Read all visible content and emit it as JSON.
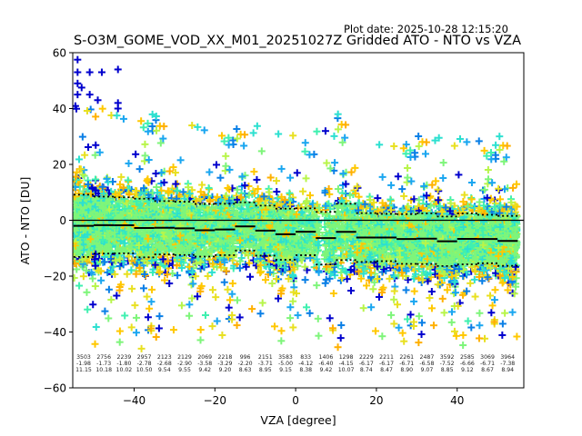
{
  "chart_data": {
    "type": "scatter",
    "title": "S-O3M_GOME_VOD_XX_M01_20251027Z Gridded ATO - NTO vs VZA",
    "plot_date": "Plot date: 2025-10-28 12:15:20",
    "xlabel": "VZA [degree]",
    "ylabel": "ATO - NTO [DU]",
    "xlim": [
      -55.2,
      56.5
    ],
    "ylim": [
      -60,
      60
    ],
    "xticks": [
      -40,
      -20,
      0,
      20,
      40
    ],
    "xtick_labels": [
      "−40",
      "−20",
      "0",
      "20",
      "40"
    ],
    "yticks": [
      -60,
      -40,
      -20,
      0,
      20,
      40,
      60
    ],
    "ytick_labels": [
      "−60",
      "−40",
      "−20",
      "0",
      "20",
      "40",
      "60"
    ],
    "marker": "plus",
    "colormap": [
      "#0000cd",
      "#0a7fe6",
      "#1aa6f0",
      "#2de0d0",
      "#3ff0b0",
      "#7ef57a",
      "#b8f54a",
      "#e8e020",
      "#ffc800",
      "#ffb000"
    ],
    "zero_line": 0,
    "bins": {
      "edges_start": -55,
      "width": 5,
      "counts": [
        "3503",
        "2756",
        "2239",
        "2957",
        "2123",
        "2129",
        "2069",
        "2218",
        "996",
        "2151",
        "3583",
        "833",
        "1406",
        "1298",
        "2229",
        "2211",
        "2261",
        "2487",
        "3592",
        "2585",
        "3069",
        "3964"
      ],
      "means": [
        "-1.98",
        "-1.73",
        "-1.80",
        "-2.78",
        "-2.68",
        "-2.90",
        "-3.58",
        "-3.29",
        "-2.20",
        "-3.71",
        "-5.00",
        "-4.12",
        "-6.40",
        "-4.15",
        "-6.17",
        "-6.17",
        "-6.71",
        "-6.58",
        "-7.52",
        "-6.66",
        "-6.71",
        "-7.38"
      ],
      "stds": [
        "11.15",
        "10.18",
        "10.02",
        "10.50",
        "9.54",
        "9.55",
        "9.42",
        "9.20",
        "8.63",
        "8.95",
        "9.15",
        "8.38",
        "9.42",
        "10.07",
        "8.74",
        "8.47",
        "8.90",
        "9.07",
        "8.85",
        "9.12",
        "8.67",
        "8.94"
      ]
    },
    "series": [
      {
        "name": "mean",
        "style": "solid",
        "color": "#000000"
      },
      {
        "name": "mean + std",
        "style": "dotted",
        "color": "#000000"
      },
      {
        "name": "mean - std",
        "style": "dotted",
        "color": "#000000"
      }
    ]
  }
}
